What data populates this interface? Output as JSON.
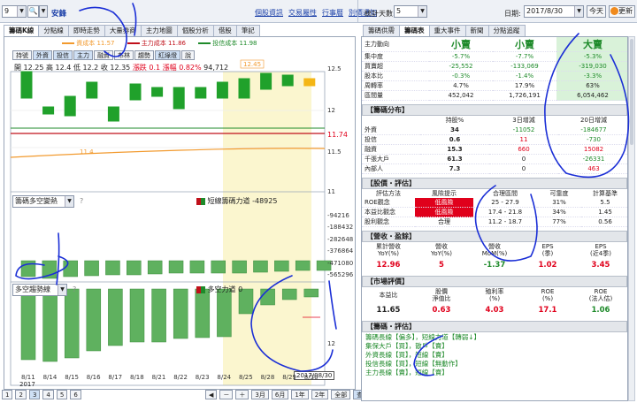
{
  "top": {
    "code_value": "9",
    "stock_name": "安鋒",
    "links": [
      "個股資訊",
      "交易屬性",
      "行事曆",
      "別價通知"
    ],
    "right_label_days": "統計天數:",
    "days_value": "5",
    "date_label": "日期:",
    "date_value": "2017/8/30",
    "today_btn": "今天",
    "refresh_btn": "更新"
  },
  "left_tabs": [
    "籌碼K線",
    "分點線",
    "即時走勢",
    "大量券商",
    "主力地圖",
    "個股分析",
    "借股",
    "筆記"
  ],
  "legend": [
    {
      "label": "資成本 11.57",
      "color": "#f29a2e"
    },
    {
      "label": "主力成本 11.86",
      "color": "#c0101a"
    },
    {
      "label": "投信成本 11.98",
      "color": "#1e8a2a"
    }
  ],
  "toolbar": [
    "持號",
    "外資",
    "投信",
    "主力",
    "融資",
    "布林",
    "趨勢",
    "紅綠燈",
    "說"
  ],
  "ohlc": {
    "open_lab": "開",
    "open": "12.25",
    "high_lab": "高",
    "high": "12.4",
    "low_lab": "低",
    "low": "12.2",
    "close_lab": "收",
    "close": "12.35",
    "chg_lab": "漲跌",
    "chg": "0.1",
    "pct_lab": "漲幅",
    "pct": "0.82%",
    "vol": "94,712"
  },
  "price_axis": [
    "12.5",
    "12",
    "11.74",
    "11.5",
    "11"
  ],
  "peak_label": "12.45",
  "low_label": "11.4",
  "sub1": {
    "select": "籌碼多空變熱",
    "title": "短線籌碼力道",
    "value": "-48925",
    "axis": [
      "-94216",
      "-188432",
      "-282648",
      "-376864",
      "-471080",
      "-565296"
    ]
  },
  "sub2": {
    "select": "多空趨勢線",
    "title": "多空力道",
    "value": "0",
    "axis": [
      "12"
    ]
  },
  "xdates": [
    "8/11",
    "8/14",
    "8/15",
    "8/16",
    "8/17",
    "8/18",
    "8/21",
    "8/22",
    "8/23",
    "8/24",
    "8/25",
    "8/28",
    "8/29",
    "8/30"
  ],
  "year": "2017",
  "date_tag": "2017/08/30",
  "pager": [
    "1",
    "2",
    "3",
    "4",
    "5",
    "6"
  ],
  "range_btns": [
    "3月",
    "6月",
    "1年",
    "2年",
    "全部",
    "查價"
  ],
  "right_tabs": [
    "籌碼供需",
    "籌碼表",
    "重大事件",
    "新聞",
    "分點追蹤"
  ],
  "summary": {
    "header": [
      "",
      "小賣",
      "小賣",
      "大賣"
    ],
    "rows": [
      {
        "k": "主力動向",
        "v": [
          "小賣",
          "小賣",
          "大賣"
        ]
      },
      {
        "k": "集中度",
        "v": [
          "-5.7%",
          "-7.7%",
          "-5.3%"
        ]
      },
      {
        "k": "買賣超",
        "v": [
          "-25,552",
          "-133,069",
          "-319,030"
        ]
      },
      {
        "k": "股本比",
        "v": [
          "-0.3%",
          "-1.4%",
          "-3.3%"
        ]
      },
      {
        "k": "周轉率",
        "v": [
          "4.7%",
          "17.9%",
          "63%"
        ]
      },
      {
        "k": "區間量",
        "v": [
          "452,042",
          "1,726,191",
          "6,054,462"
        ]
      }
    ]
  },
  "dist": {
    "title": "【籌碼分布】",
    "cols": [
      "",
      "持股%",
      "3日增減",
      "20日增減"
    ],
    "rows": [
      {
        "k": "外資",
        "v": [
          "34",
          "-11052",
          "-184677"
        ]
      },
      {
        "k": "投信",
        "v": [
          "0.6",
          "11",
          "-730"
        ]
      },
      {
        "k": "融資",
        "v": [
          "15.3",
          "660",
          "15082"
        ]
      },
      {
        "k": "千張大戶",
        "v": [
          "61.3",
          "0",
          "-26331"
        ]
      },
      {
        "k": "內部人",
        "v": [
          "7.3",
          "0",
          "463"
        ]
      }
    ]
  },
  "val": {
    "title": "【股價・評估】",
    "cols": [
      "評估方法",
      "風險提示",
      "合理區間",
      "可靠度",
      "計算基準"
    ],
    "rows": [
      {
        "k": "ROE觀念",
        "risk": "低風險",
        "range": "25 - 27.9",
        "rel": "31%",
        "base": "5.5"
      },
      {
        "k": "本益比觀念",
        "risk": "低風險",
        "range": "17.4 - 21.8",
        "rel": "34%",
        "base": "1.45"
      },
      {
        "k": "股利觀念",
        "risk": "合理",
        "range": "11.2 - 18.7",
        "rel": "77%",
        "base": "0.56"
      }
    ]
  },
  "rev": {
    "title": "【營收・盈餘】",
    "cols": [
      "累計營收\nYoY(%)",
      "營收\nYoY(%)",
      "營收\nMoM(%)",
      "EPS\n(季)",
      "EPS\n(近4季)"
    ],
    "vals": [
      "12.96",
      "5",
      "-1.37",
      "1.02",
      "3.45"
    ]
  },
  "mkt": {
    "title": "【市場評價】",
    "cols": [
      "本益比",
      "股價\n淨值比",
      "殖利率\n(%)",
      "ROE\n(%)",
      "ROE\n(法人估)"
    ],
    "vals": [
      "11.65",
      "0.63",
      "4.03",
      "17.1",
      "1.06"
    ]
  },
  "chip": {
    "title": "【籌碼・評估】",
    "lines": [
      "籌碼長線【偏多】，短線力道【轉弱↓】",
      "集保大戶【買】，散戶【賣】",
      "外資長線【買】，短線【賣】",
      "投信長線【買】，短線【無動作】",
      "主力長線【賣】，短線【賣】"
    ]
  }
}
